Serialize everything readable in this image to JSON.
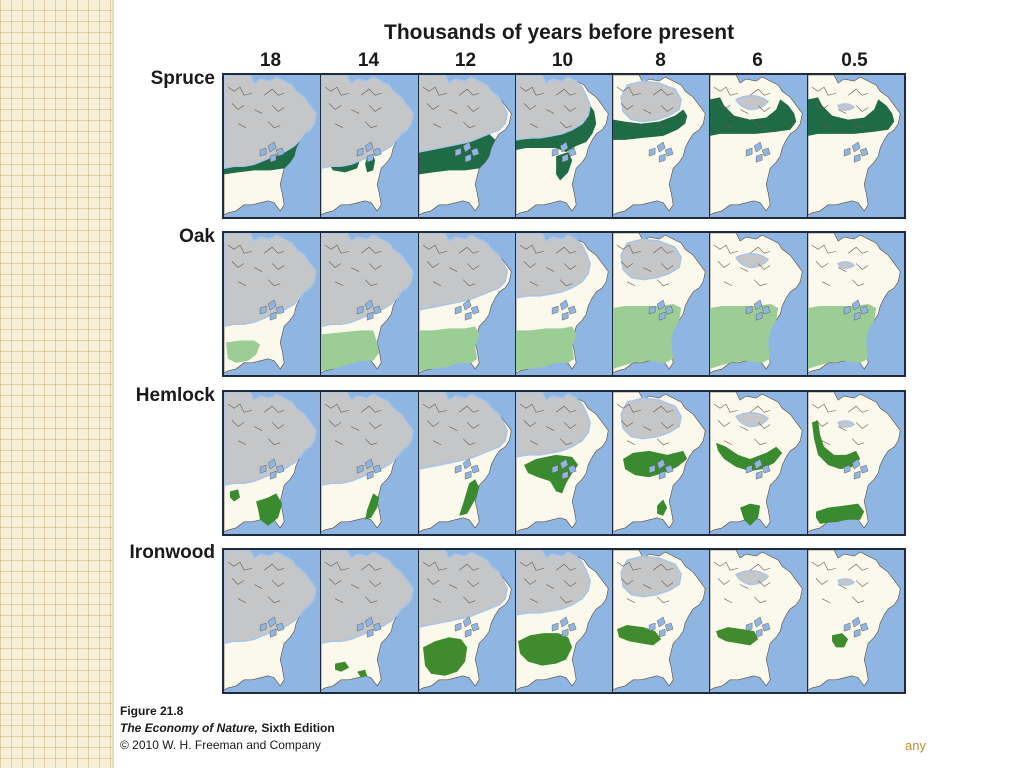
{
  "title": "Thousands of years before present",
  "time_labels": [
    "18",
    "14",
    "12",
    "10",
    "8",
    "6",
    "0.5"
  ],
  "rows": [
    {
      "label": "Spruce",
      "color": "#1f6b45",
      "panels": [
        {
          "zone": 2,
          "ice": 0
        },
        {
          "zone": 3,
          "ice": 0
        },
        {
          "zone": 2,
          "ice": 1
        },
        {
          "zone": 4,
          "ice": 2
        },
        {
          "zone": 5,
          "ice": 3
        },
        {
          "zone": 6,
          "ice": 4
        },
        {
          "zone": 6,
          "ice": 5
        }
      ]
    },
    {
      "label": "Oak",
      "color": "#9ccd95",
      "panels": [
        {
          "zone": 9,
          "ice": 0
        },
        {
          "zone": 8,
          "ice": 0
        },
        {
          "zone": 7,
          "ice": 1
        },
        {
          "zone": 7,
          "ice": 2
        },
        {
          "zone": 10,
          "ice": 3
        },
        {
          "zone": 10,
          "ice": 4
        },
        {
          "zone": 10,
          "ice": 5
        }
      ]
    },
    {
      "label": "Hemlock",
      "color": "#3a8a2f",
      "panels": [
        {
          "zone": 11,
          "ice": 0
        },
        {
          "zone": 12,
          "ice": 0
        },
        {
          "zone": 13,
          "ice": 1
        },
        {
          "zone": 14,
          "ice": 2
        },
        {
          "zone": 15,
          "ice": 3
        },
        {
          "zone": 16,
          "ice": 4
        },
        {
          "zone": 17,
          "ice": 5
        }
      ]
    },
    {
      "label": "Ironwood",
      "color": "#3f8b2d",
      "panels": [
        {
          "zone": 0,
          "ice": 0
        },
        {
          "zone": 18,
          "ice": 0
        },
        {
          "zone": 19,
          "ice": 1
        },
        {
          "zone": 20,
          "ice": 2
        },
        {
          "zone": 21,
          "ice": 3
        },
        {
          "zone": 22,
          "ice": 4
        },
        {
          "zone": 23,
          "ice": 5
        }
      ]
    }
  ],
  "caption": {
    "figure": "Figure 21.8",
    "book_title": "The Economy of Nature,",
    "edition": "Sixth Edition",
    "copyright": "© 2010 W. H. Freeman and Company"
  },
  "corner_text": "any",
  "colors": {
    "ocean": "#8fb6e3",
    "land": "#fbf9ec",
    "ice": "#c4c6c8",
    "ice_edge": "#a8c5e8",
    "border": "#1f2b3a"
  }
}
